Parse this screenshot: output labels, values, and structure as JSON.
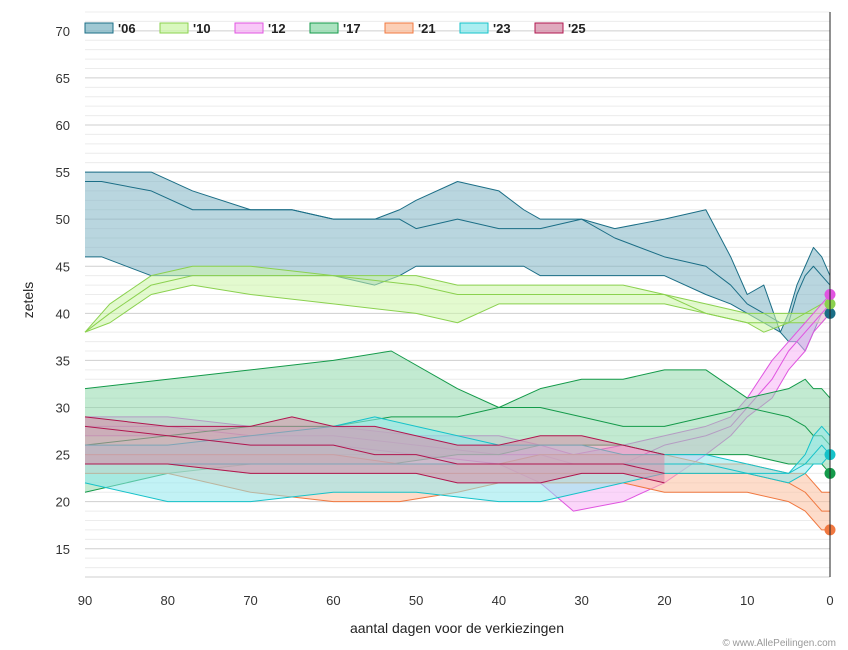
{
  "chart_data": {
    "type": "area",
    "title": "",
    "xlabel": "aantal dagen voor de verkiezingen",
    "ylabel": "zetels",
    "xlim": [
      90,
      0
    ],
    "ylim": [
      12,
      72
    ],
    "x_ticks": [
      "90",
      "80",
      "70",
      "60",
      "50",
      "40",
      "30",
      "20",
      "10",
      "0"
    ],
    "y_ticks": [
      "15",
      "20",
      "25",
      "30",
      "35",
      "40",
      "45",
      "50",
      "55",
      "60",
      "65",
      "70"
    ],
    "grid": true,
    "legend_position": "top-left",
    "credit": "© www.AllePeilingen.com",
    "series": [
      {
        "name": "'06",
        "color": "#1b6e86",
        "fill": "#7fb5c4",
        "result": 40,
        "x": [
          90,
          88,
          82,
          77,
          70,
          65,
          60,
          55,
          52,
          50,
          45,
          40,
          37,
          35,
          30,
          26,
          20,
          15,
          12,
          10,
          8,
          6,
          5,
          4,
          3,
          2,
          1,
          0
        ],
        "high": [
          55,
          55,
          55,
          53,
          51,
          51,
          50,
          50,
          51,
          52,
          54,
          53,
          51,
          50,
          50,
          49,
          50,
          51,
          46,
          42,
          43,
          38,
          40,
          43,
          45,
          47,
          46,
          44
        ],
        "mid": [
          54,
          54,
          53,
          51,
          51,
          51,
          50,
          50,
          50,
          49,
          50,
          49,
          49,
          49,
          50,
          48,
          46,
          45,
          43,
          41,
          40,
          39,
          39,
          42,
          44,
          45,
          44,
          43
        ],
        "low": [
          46,
          46,
          44,
          44,
          44,
          44,
          44,
          43,
          44,
          45,
          45,
          45,
          45,
          44,
          44,
          44,
          44,
          42,
          41,
          40,
          39,
          38,
          37,
          37,
          36,
          38,
          40,
          40
        ]
      },
      {
        "name": "'10",
        "color": "#8bd14f",
        "fill": "#ccf5a8",
        "result": 41,
        "x": [
          90,
          87,
          82,
          77,
          70,
          60,
          50,
          45,
          40,
          35,
          30,
          25,
          20,
          15,
          10,
          8,
          5,
          3,
          1,
          0
        ],
        "high": [
          38,
          41,
          44,
          45,
          45,
          44,
          44,
          43,
          43,
          43,
          43,
          43,
          42,
          41,
          40,
          40,
          40,
          40,
          41,
          41
        ],
        "mid": [
          38,
          40,
          43,
          44,
          44,
          44,
          43,
          42,
          42,
          42,
          42,
          42,
          42,
          40,
          39,
          39,
          39,
          40,
          40,
          40
        ],
        "low": [
          38,
          39,
          42,
          43,
          42,
          41,
          40,
          39,
          41,
          41,
          41,
          41,
          41,
          40,
          39,
          38,
          39,
          39,
          39,
          40
        ]
      },
      {
        "name": "'12",
        "color": "#e055e0",
        "fill": "#f7b5f5",
        "result": 42,
        "x": [
          90,
          80,
          70,
          60,
          50,
          40,
          35,
          31,
          25,
          20,
          15,
          12,
          10,
          7,
          5,
          3,
          2,
          1,
          0
        ],
        "high": [
          29,
          29,
          28,
          28,
          27,
          27,
          26,
          25,
          26,
          27,
          28,
          29,
          31,
          35,
          37,
          39,
          40,
          41,
          42
        ],
        "mid": [
          28,
          28,
          27,
          27,
          26,
          25,
          25,
          24,
          24,
          26,
          27,
          28,
          30,
          33,
          36,
          38,
          39,
          40,
          41
        ],
        "low": [
          27,
          27,
          26,
          26,
          25,
          24,
          22,
          19,
          20,
          22,
          25,
          27,
          29,
          31,
          34,
          36,
          38,
          39,
          40
        ]
      },
      {
        "name": "'17",
        "color": "#149a4a",
        "fill": "#8fd9ab",
        "result": 23,
        "x": [
          90,
          80,
          70,
          60,
          53,
          45,
          40,
          35,
          30,
          25,
          20,
          15,
          10,
          5,
          3,
          2,
          1,
          0
        ],
        "high": [
          32,
          33,
          34,
          35,
          36,
          32,
          30,
          32,
          33,
          33,
          34,
          34,
          31,
          32,
          33,
          32,
          32,
          31
        ],
        "mid": [
          26,
          27,
          28,
          28,
          29,
          29,
          30,
          30,
          29,
          28,
          28,
          29,
          30,
          29,
          28,
          27,
          27,
          26
        ],
        "low": [
          21,
          23,
          24,
          24,
          24,
          25,
          25,
          26,
          26,
          26,
          25,
          25,
          25,
          24,
          24,
          24,
          24,
          23
        ]
      },
      {
        "name": "'21",
        "color": "#f07840",
        "fill": "#fbbf9e",
        "result": 17,
        "x": [
          90,
          80,
          70,
          60,
          52,
          45,
          40,
          35,
          30,
          25,
          20,
          15,
          10,
          5,
          3,
          2,
          1,
          0
        ],
        "high": [
          25,
          25,
          25,
          25,
          24,
          24,
          24,
          25,
          25,
          25,
          25,
          24,
          24,
          23,
          23,
          22,
          21,
          21
        ],
        "mid": [
          24,
          24,
          23,
          23,
          23,
          23,
          23,
          23,
          23,
          23,
          23,
          23,
          23,
          22,
          21,
          20,
          19,
          19
        ],
        "low": [
          23,
          23,
          21,
          20,
          20,
          21,
          22,
          22,
          22,
          22,
          21,
          21,
          21,
          20,
          19,
          18,
          17,
          17
        ]
      },
      {
        "name": "'23",
        "color": "#16c2c9",
        "fill": "#8fe8ec",
        "result": 25,
        "x": [
          90,
          80,
          70,
          60,
          55,
          50,
          40,
          35,
          30,
          25,
          20,
          15,
          10,
          5,
          3,
          2,
          1,
          0
        ],
        "high": [
          26,
          26,
          27,
          28,
          29,
          28,
          26,
          26,
          26,
          25,
          25,
          25,
          24,
          23,
          25,
          27,
          28,
          27
        ],
        "mid": [
          24,
          24,
          24,
          24,
          24,
          24,
          24,
          24,
          24,
          24,
          24,
          24,
          23,
          23,
          24,
          25,
          26,
          25
        ],
        "low": [
          22,
          20,
          20,
          21,
          21,
          21,
          20,
          20,
          21,
          22,
          23,
          23,
          23,
          22,
          23,
          24,
          24,
          25
        ]
      },
      {
        "name": "'25",
        "color": "#b0174f",
        "fill": "#d68da8",
        "result": null,
        "x": [
          90,
          80,
          70,
          65,
          60,
          55,
          50,
          45,
          40,
          35,
          30,
          25,
          20
        ],
        "high": [
          29,
          28,
          28,
          29,
          28,
          28,
          27,
          26,
          26,
          27,
          27,
          26,
          25
        ],
        "mid": [
          28,
          27,
          26,
          26,
          26,
          25,
          25,
          24,
          24,
          24,
          24,
          24,
          23
        ],
        "low": [
          24,
          24,
          23,
          23,
          23,
          23,
          23,
          22,
          22,
          22,
          23,
          23,
          22
        ]
      }
    ]
  }
}
